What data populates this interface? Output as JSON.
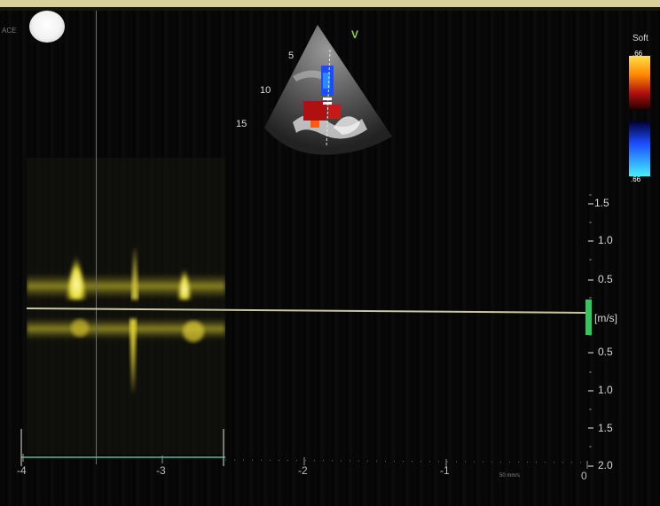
{
  "overlay": {
    "mode_label": "ACE",
    "view_label": "V",
    "filter_label": "Soft"
  },
  "sector_depths": [
    "5",
    "10",
    "15"
  ],
  "color_scale": {
    "max": ".66",
    "min": ".66",
    "colors": {
      "positive": "#ff8a00",
      "mid": "#2a0000",
      "negative": "#1a4cff",
      "tip": "#44f0ff"
    }
  },
  "velocity_scale": {
    "unit": "[m/s]",
    "labels": [
      "1.5",
      "1.0",
      "0.5",
      "0.5",
      "1.0",
      "1.5",
      "2.0"
    ],
    "positions": [
      1.5,
      1.0,
      0.5,
      -0.5,
      -1.0,
      -1.5,
      -2.0
    ]
  },
  "time_axis": {
    "labels": [
      "-4",
      "-3",
      "-2",
      "-1",
      "0"
    ],
    "sweep_label": "50 mm/s"
  },
  "doppler_trace": {
    "color": "#e8dd33",
    "peaks_positive_m_s": [
      0.75,
      0.7,
      0.65
    ],
    "peak_negative_m_s": -0.95
  }
}
